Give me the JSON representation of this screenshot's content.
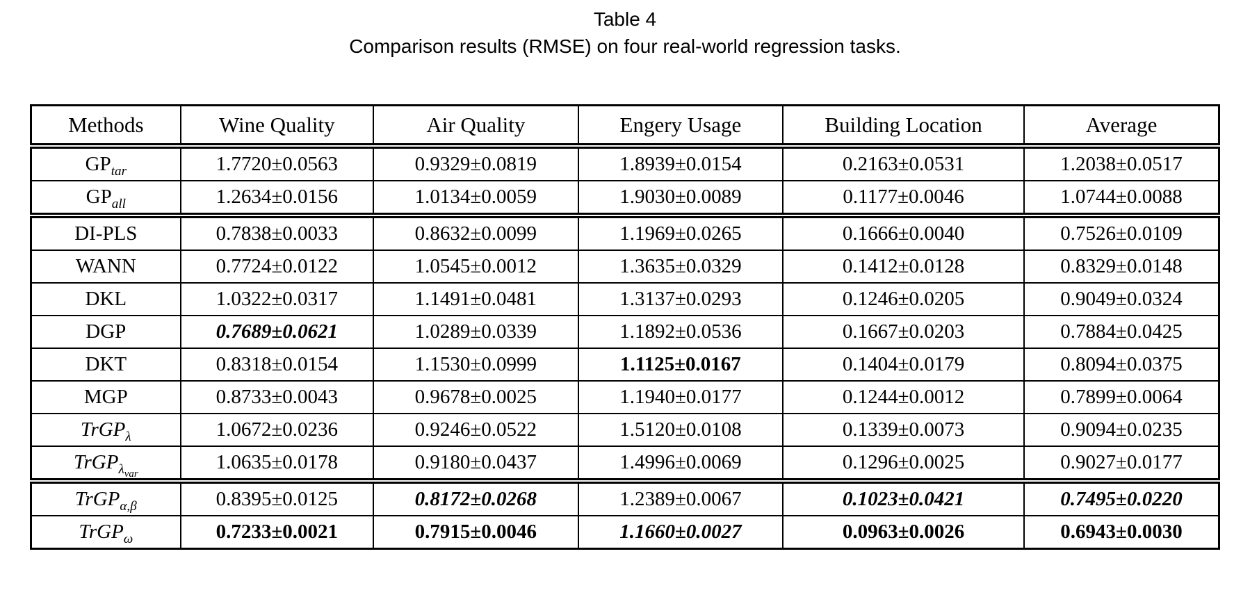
{
  "caption": {
    "line1": "Table 4",
    "line2": "Comparison results (RMSE) on four real-world regression tasks."
  },
  "table": {
    "columns": [
      "Methods",
      "Wine Quality",
      "Air Quality",
      "Engery Usage",
      "Building Location",
      "Average"
    ],
    "groups": [
      {
        "name": "gp-baselines",
        "rows": [
          {
            "method": {
              "main": "GP",
              "italic": false,
              "sub": "tar",
              "subsub": ""
            },
            "cells": [
              {
                "v": "1.7720±0.0563",
                "s": "n"
              },
              {
                "v": "0.9329±0.0819",
                "s": "n"
              },
              {
                "v": "1.8939±0.0154",
                "s": "n"
              },
              {
                "v": "0.2163±0.0531",
                "s": "n"
              },
              {
                "v": "1.2038±0.0517",
                "s": "n"
              }
            ]
          },
          {
            "method": {
              "main": "GP",
              "italic": false,
              "sub": "all",
              "subsub": ""
            },
            "cells": [
              {
                "v": "1.2634±0.0156",
                "s": "n"
              },
              {
                "v": "1.0134±0.0059",
                "s": "n"
              },
              {
                "v": "1.9030±0.0089",
                "s": "n"
              },
              {
                "v": "0.1177±0.0046",
                "s": "n"
              },
              {
                "v": "1.0744±0.0088",
                "s": "n"
              }
            ]
          }
        ]
      },
      {
        "name": "comparison-methods",
        "rows": [
          {
            "method": {
              "main": "DI-PLS",
              "italic": false,
              "sub": "",
              "subsub": ""
            },
            "cells": [
              {
                "v": "0.7838±0.0033",
                "s": "n"
              },
              {
                "v": "0.8632±0.0099",
                "s": "n"
              },
              {
                "v": "1.1969±0.0265",
                "s": "n"
              },
              {
                "v": "0.1666±0.0040",
                "s": "n"
              },
              {
                "v": "0.7526±0.0109",
                "s": "n"
              }
            ]
          },
          {
            "method": {
              "main": "WANN",
              "italic": false,
              "sub": "",
              "subsub": ""
            },
            "cells": [
              {
                "v": "0.7724±0.0122",
                "s": "n"
              },
              {
                "v": "1.0545±0.0012",
                "s": "n"
              },
              {
                "v": "1.3635±0.0329",
                "s": "n"
              },
              {
                "v": "0.1412±0.0128",
                "s": "n"
              },
              {
                "v": "0.8329±0.0148",
                "s": "n"
              }
            ]
          },
          {
            "method": {
              "main": "DKL",
              "italic": false,
              "sub": "",
              "subsub": ""
            },
            "cells": [
              {
                "v": "1.0322±0.0317",
                "s": "n"
              },
              {
                "v": "1.1491±0.0481",
                "s": "n"
              },
              {
                "v": "1.3137±0.0293",
                "s": "n"
              },
              {
                "v": "0.1246±0.0205",
                "s": "n"
              },
              {
                "v": "0.9049±0.0324",
                "s": "n"
              }
            ]
          },
          {
            "method": {
              "main": "DGP",
              "italic": false,
              "sub": "",
              "subsub": ""
            },
            "cells": [
              {
                "v": "0.7689±0.0621",
                "s": "bi"
              },
              {
                "v": "1.0289±0.0339",
                "s": "n"
              },
              {
                "v": "1.1892±0.0536",
                "s": "n"
              },
              {
                "v": "0.1667±0.0203",
                "s": "n"
              },
              {
                "v": "0.7884±0.0425",
                "s": "n"
              }
            ]
          },
          {
            "method": {
              "main": "DKT",
              "italic": false,
              "sub": "",
              "subsub": ""
            },
            "cells": [
              {
                "v": "0.8318±0.0154",
                "s": "n"
              },
              {
                "v": "1.1530±0.0999",
                "s": "n"
              },
              {
                "v": "1.1125±0.0167",
                "s": "b"
              },
              {
                "v": "0.1404±0.0179",
                "s": "n"
              },
              {
                "v": "0.8094±0.0375",
                "s": "n"
              }
            ]
          },
          {
            "method": {
              "main": "MGP",
              "italic": false,
              "sub": "",
              "subsub": ""
            },
            "cells": [
              {
                "v": "0.8733±0.0043",
                "s": "n"
              },
              {
                "v": "0.9678±0.0025",
                "s": "n"
              },
              {
                "v": "1.1940±0.0177",
                "s": "n"
              },
              {
                "v": "0.1244±0.0012",
                "s": "n"
              },
              {
                "v": "0.7899±0.0064",
                "s": "n"
              }
            ]
          },
          {
            "method": {
              "main": "TrGP",
              "italic": true,
              "sub": "λ",
              "subsub": ""
            },
            "cells": [
              {
                "v": "1.0672±0.0236",
                "s": "n"
              },
              {
                "v": "0.9246±0.0522",
                "s": "n"
              },
              {
                "v": "1.5120±0.0108",
                "s": "n"
              },
              {
                "v": "0.1339±0.0073",
                "s": "n"
              },
              {
                "v": "0.9094±0.0235",
                "s": "n"
              }
            ]
          },
          {
            "method": {
              "main": "TrGP",
              "italic": true,
              "sub": "λ",
              "subsub": "var"
            },
            "cells": [
              {
                "v": "1.0635±0.0178",
                "s": "n"
              },
              {
                "v": "0.9180±0.0437",
                "s": "n"
              },
              {
                "v": "1.4996±0.0069",
                "s": "n"
              },
              {
                "v": "0.1296±0.0025",
                "s": "n"
              },
              {
                "v": "0.9027±0.0177",
                "s": "n"
              }
            ]
          }
        ]
      },
      {
        "name": "proposed-methods",
        "rows": [
          {
            "method": {
              "main": "TrGP",
              "italic": true,
              "sub": "α,β",
              "subsub": ""
            },
            "cells": [
              {
                "v": "0.8395±0.0125",
                "s": "n"
              },
              {
                "v": "0.8172±0.0268",
                "s": "bi"
              },
              {
                "v": "1.2389±0.0067",
                "s": "n"
              },
              {
                "v": "0.1023±0.0421",
                "s": "bi"
              },
              {
                "v": "0.7495±0.0220",
                "s": "bi"
              }
            ]
          },
          {
            "method": {
              "main": "TrGP",
              "italic": true,
              "sub": "ω",
              "subsub": ""
            },
            "cells": [
              {
                "v": "0.7233±0.0021",
                "s": "b"
              },
              {
                "v": "0.7915±0.0046",
                "s": "b"
              },
              {
                "v": "1.1660±0.0027",
                "s": "bi"
              },
              {
                "v": "0.0963±0.0026",
                "s": "b"
              },
              {
                "v": "0.6943±0.0030",
                "s": "b"
              }
            ]
          }
        ]
      }
    ]
  }
}
